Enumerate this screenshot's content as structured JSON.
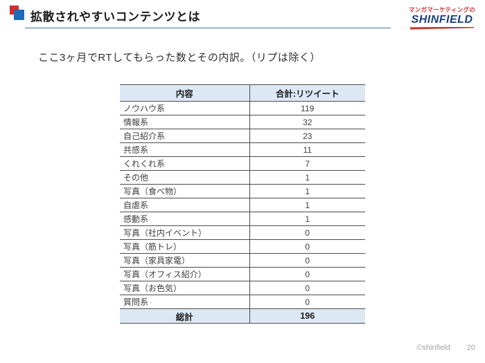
{
  "slide": {
    "title": "拡散されやすいコンテンツとは",
    "subtitle": "ここ3ヶ月でRTしてもらった数とその内訳。（リプは除く）",
    "copyright": "©shinfield",
    "page_number": "20"
  },
  "logo": {
    "tagline": "マンガマーケティングの",
    "brand": "SHINFIELD"
  },
  "table": {
    "headers": [
      "内容",
      "合計:リツイート"
    ],
    "rows": [
      {
        "label": "ノウハウ系",
        "value": "119"
      },
      {
        "label": "情報系",
        "value": "32"
      },
      {
        "label": "自己紹介系",
        "value": "23"
      },
      {
        "label": "共感系",
        "value": "11"
      },
      {
        "label": "くれくれ系",
        "value": "7"
      },
      {
        "label": "その他",
        "value": "1"
      },
      {
        "label": "写真（食べ物）",
        "value": "1"
      },
      {
        "label": "自虐系",
        "value": "1"
      },
      {
        "label": "感動系",
        "value": "1"
      },
      {
        "label": "写真（社内イベント）",
        "value": "0"
      },
      {
        "label": "写真（筋トレ）",
        "value": "0"
      },
      {
        "label": "写真（家具家電）",
        "value": "0"
      },
      {
        "label": "写真（オフィス紹介）",
        "value": "0"
      },
      {
        "label": "写真（お色気）",
        "value": "0"
      },
      {
        "label": "質問系",
        "value": "0"
      }
    ],
    "total": {
      "label": "総計",
      "value": "196"
    }
  },
  "colors": {
    "table_header_bg": "#dce9f5",
    "table_border": "#4a4a4a",
    "marker_red": "#d32b2b",
    "marker_blue": "#1e6bb8",
    "title_rule": "#41719c",
    "logo_navy": "#1b3e7d",
    "logo_red": "#cf3230",
    "footer_text": "#a3a3a3"
  }
}
